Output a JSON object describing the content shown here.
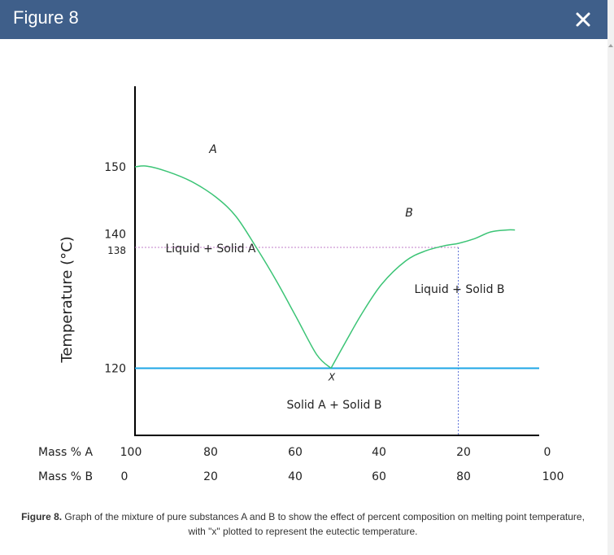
{
  "dialog": {
    "title": "Figure 8",
    "close_label": "×"
  },
  "colors": {
    "header": "#3f5f8a",
    "curve": "#3cc476",
    "eutectic_line": "#1ea6e6",
    "guide_line_138": "#c07cc8",
    "guide_line_vertical": "#5a6fd6"
  },
  "chart_data": {
    "type": "line",
    "title": "",
    "ylabel": "Temperature (°C)",
    "ylim": [
      110,
      162
    ],
    "y_ticks": [
      150,
      140,
      138,
      120
    ],
    "x_axis_rows": [
      {
        "label": "Mass % A",
        "ticks": [
          "100",
          "80",
          "60",
          "40",
          "20",
          "0"
        ]
      },
      {
        "label": "Mass % B",
        "ticks": [
          "0",
          "20",
          "40",
          "60",
          "80",
          "100"
        ]
      }
    ],
    "x_unit": "Mass % B",
    "xlim": [
      0,
      100
    ],
    "series": [
      {
        "name": "A",
        "x": [
          0,
          3,
          8,
          14,
          20,
          25,
          30,
          35,
          40,
          45,
          48.5
        ],
        "y": [
          150,
          150.1,
          149.3,
          147.8,
          145.5,
          142.6,
          138,
          133,
          127.5,
          122,
          120
        ]
      },
      {
        "name": "B",
        "x": [
          48.5,
          52,
          56,
          61,
          67,
          72,
          77,
          80,
          84,
          88,
          92,
          94
        ],
        "y": [
          120,
          123.8,
          128,
          132.5,
          136,
          137.5,
          138.3,
          138.6,
          139.3,
          140.3,
          140.6,
          140.6
        ]
      }
    ],
    "eutectic_temperature": 120,
    "eutectic_point": {
      "x": 48.5,
      "y": 120,
      "label": "X"
    },
    "guide_lines": {
      "horizontal_temperature": 138,
      "vertical_mass_percent_B": 80
    },
    "region_labels": {
      "left": "Liquid + Solid A",
      "right": "Liquid + Solid B",
      "bottom": "Solid A + Solid B"
    },
    "curve_labels": {
      "a": "A",
      "b": "B"
    }
  },
  "caption": {
    "prefix": "Figure 8.",
    "text": " Graph of the mixture of pure substances A and B to show the effect of percent composition on melting point temperature, with \"x\" plotted to represent the eutectic temperature."
  }
}
